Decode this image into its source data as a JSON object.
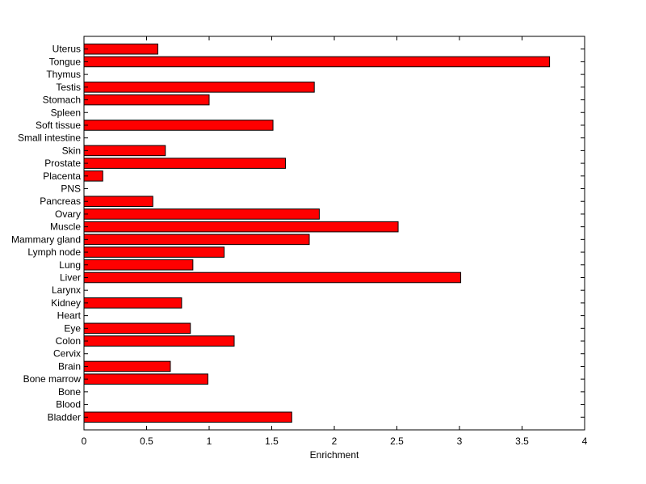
{
  "chart_data": {
    "type": "bar",
    "orientation": "horizontal",
    "title": "",
    "xlabel": "Enrichment",
    "ylabel": "",
    "xlim": [
      0,
      4
    ],
    "x_ticks": [
      "0",
      "0.5",
      "1",
      "1.5",
      "2",
      "2.5",
      "3",
      "3.5",
      "4"
    ],
    "grid": false,
    "bar_color": "#ff0000",
    "categories": [
      "Uterus",
      "Tongue",
      "Thymus",
      "Testis",
      "Stomach",
      "Spleen",
      "Soft tissue",
      "Small intestine",
      "Skin",
      "Prostate",
      "Placenta",
      "PNS",
      "Pancreas",
      "Ovary",
      "Muscle",
      "Mammary gland",
      "Lymph node",
      "Lung",
      "Liver",
      "Larynx",
      "Kidney",
      "Heart",
      "Eye",
      "Colon",
      "Cervix",
      "Brain",
      "Bone marrow",
      "Bone",
      "Blood",
      "Bladder"
    ],
    "values": [
      0.59,
      3.72,
      0,
      1.84,
      1.0,
      0,
      1.51,
      0,
      0.65,
      1.61,
      0.15,
      0,
      0.55,
      1.88,
      2.51,
      1.8,
      1.12,
      0.87,
      3.01,
      0,
      0.78,
      0,
      0.85,
      1.2,
      0,
      0.69,
      0.99,
      0,
      0,
      1.66
    ]
  }
}
